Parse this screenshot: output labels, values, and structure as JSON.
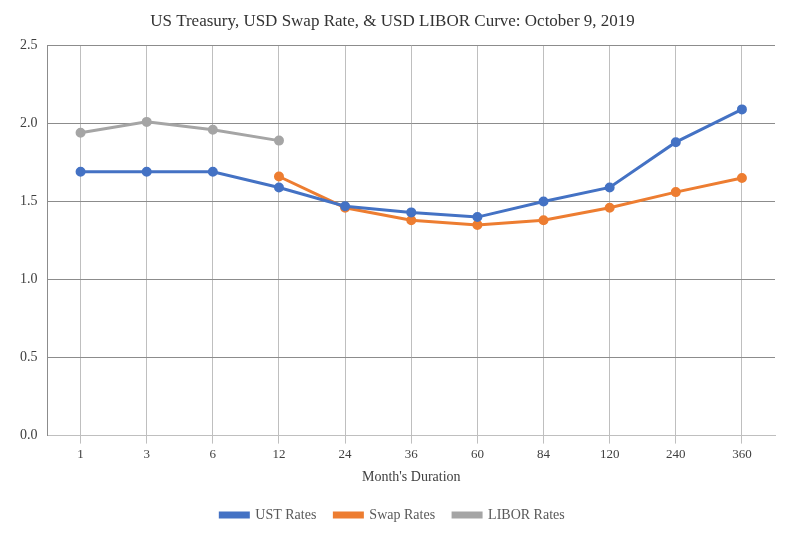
{
  "chart_data": {
    "type": "line",
    "title": "US Treasury, USD Swap Rate, & USD LIBOR Curve: October 9, 2019",
    "x_label": "Month's Duration",
    "categories": [
      "1",
      "3",
      "6",
      "12",
      "24",
      "36",
      "60",
      "84",
      "120",
      "240",
      "360"
    ],
    "series": [
      {
        "name": "UST Rates",
        "color": "#4472c4",
        "values": [
          1.69,
          1.69,
          1.69,
          1.59,
          1.47,
          1.43,
          1.4,
          1.5,
          1.59,
          1.88,
          2.09
        ]
      },
      {
        "name": "Swap Rates",
        "color": "#ed7d31",
        "values": [
          null,
          null,
          null,
          1.66,
          1.46,
          1.38,
          1.35,
          1.38,
          1.46,
          1.56,
          1.65
        ]
      },
      {
        "name": "LIBOR Rates",
        "color": "#a5a5a5",
        "values": [
          1.94,
          2.01,
          1.96,
          1.89,
          null,
          null,
          null,
          null,
          null,
          null,
          null
        ]
      }
    ],
    "ylim": [
      0,
      2.5
    ],
    "yticks": [
      {
        "value": 0,
        "label": "0.0"
      },
      0.5,
      {
        "value": 1,
        "label": "1.0"
      },
      1.5,
      {
        "value": 2,
        "label": "2.0"
      },
      2.5
    ],
    "grid": true,
    "legend": "bottom",
    "marker": "circle"
  }
}
